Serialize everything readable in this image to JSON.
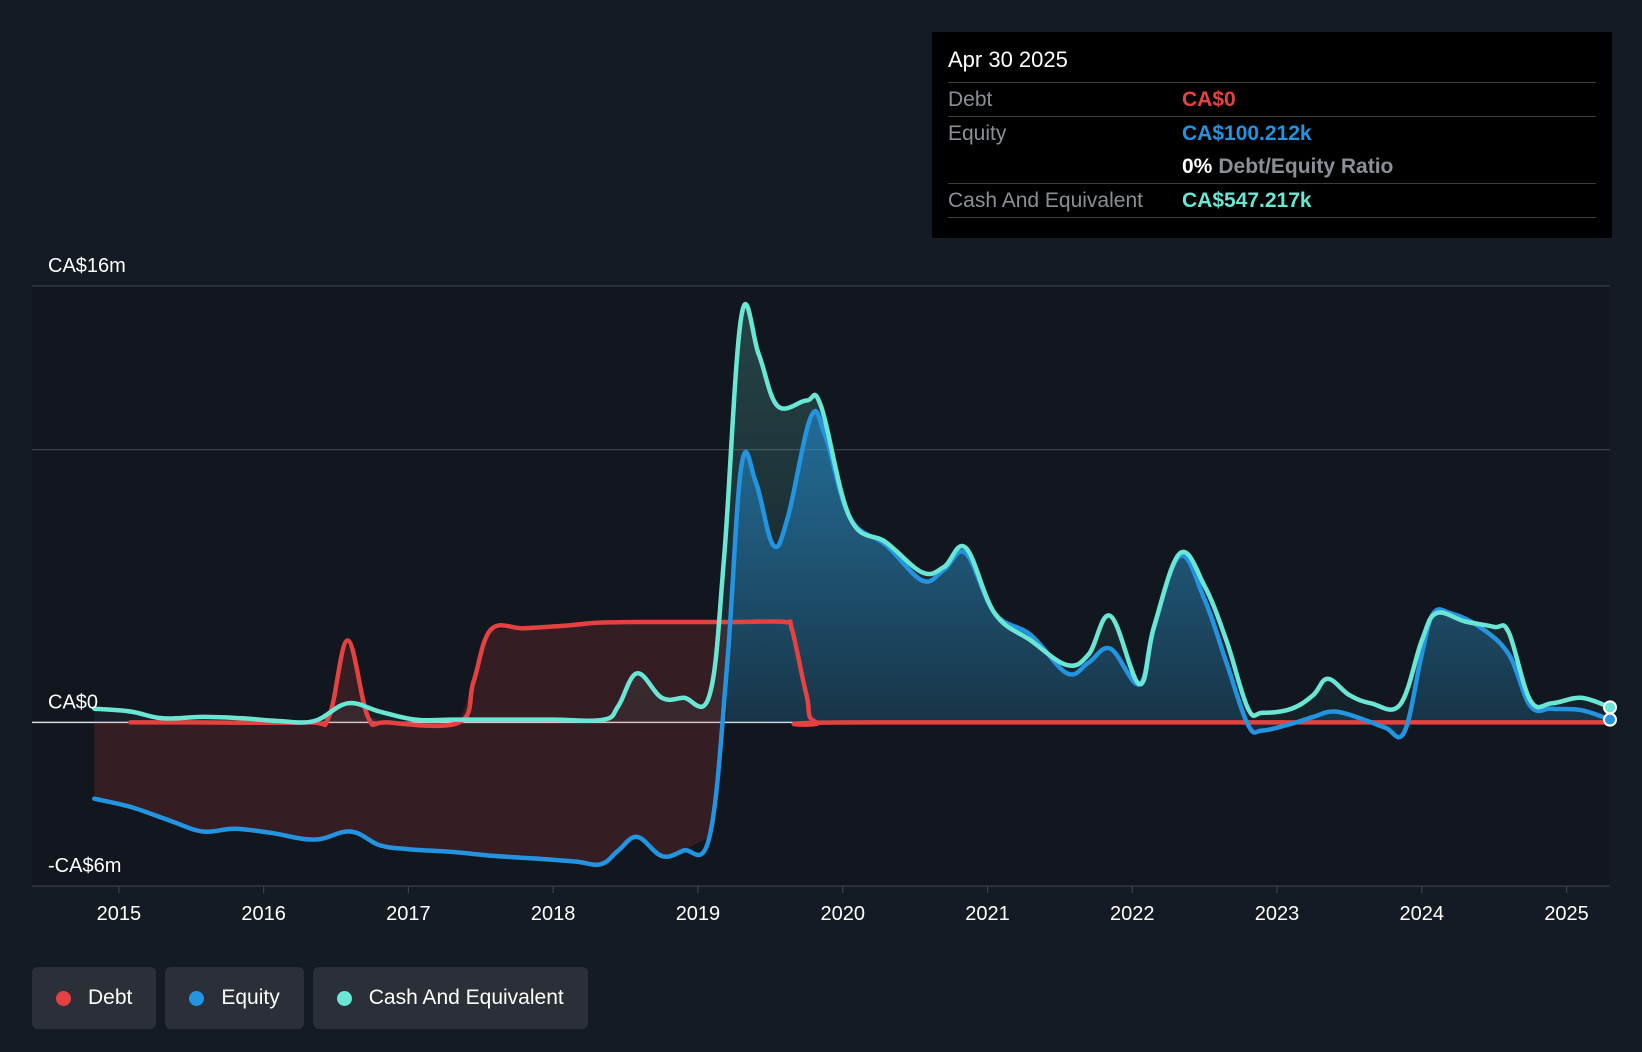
{
  "tooltip": {
    "date": "Apr 30 2025",
    "rows": [
      {
        "label": "Debt",
        "value": "CA$0",
        "color": "#e64141"
      },
      {
        "label": "Equity",
        "value": "CA$100.212k",
        "color": "#2394df"
      },
      {
        "ratio_pct": "0%",
        "ratio_label": "Debt/Equity Ratio"
      },
      {
        "label": "Cash And Equivalent",
        "value": "CA$547.217k",
        "color": "#6ae6d4"
      }
    ]
  },
  "legend": [
    {
      "label": "Debt",
      "color": "#e64141"
    },
    {
      "label": "Equity",
      "color": "#2394df"
    },
    {
      "label": "Cash And Equivalent",
      "color": "#6ae6d4"
    }
  ],
  "chart_data": {
    "type": "line",
    "x_unit": "year",
    "y_unit": "CA$m",
    "xlim": [
      2014.4,
      2025.3
    ],
    "ylim": [
      -6,
      16
    ],
    "y_tick_labels": [
      {
        "value": 16,
        "label": "CA$16m"
      },
      {
        "value": 0,
        "label": "CA$0"
      },
      {
        "value": -6,
        "label": "-CA$6m"
      }
    ],
    "gridlines": [
      16,
      10,
      0,
      -6
    ],
    "x_ticks": [
      {
        "value": 2015,
        "label": "2015"
      },
      {
        "value": 2016,
        "label": "2016"
      },
      {
        "value": 2017,
        "label": "2017"
      },
      {
        "value": 2018,
        "label": "2018"
      },
      {
        "value": 2019,
        "label": "2019"
      },
      {
        "value": 2020,
        "label": "2020"
      },
      {
        "value": 2021,
        "label": "2021"
      },
      {
        "value": 2022,
        "label": "2022"
      },
      {
        "value": 2023,
        "label": "2023"
      },
      {
        "value": 2024,
        "label": "2024"
      },
      {
        "value": 2025,
        "label": "2025"
      }
    ],
    "series": [
      {
        "name": "Debt",
        "color": "#e64141",
        "points": [
          [
            2015.08,
            0
          ],
          [
            2015.5,
            0
          ],
          [
            2016.3,
            0
          ],
          [
            2016.45,
            0.2
          ],
          [
            2016.58,
            3.0
          ],
          [
            2016.72,
            0.2
          ],
          [
            2016.85,
            0
          ],
          [
            2017.35,
            0
          ],
          [
            2017.45,
            1.5
          ],
          [
            2017.57,
            3.4
          ],
          [
            2017.8,
            3.45
          ],
          [
            2018.1,
            3.55
          ],
          [
            2018.3,
            3.65
          ],
          [
            2018.6,
            3.68
          ],
          [
            2019.0,
            3.68
          ],
          [
            2019.3,
            3.68
          ],
          [
            2019.6,
            3.68
          ],
          [
            2019.65,
            3.4
          ],
          [
            2019.75,
            1.0
          ],
          [
            2019.82,
            0
          ],
          [
            2020.2,
            0
          ],
          [
            2025.3,
            0
          ]
        ]
      },
      {
        "name": "Equity",
        "color": "#2394df",
        "points": [
          [
            2014.83,
            -2.8
          ],
          [
            2015.08,
            -3.1
          ],
          [
            2015.35,
            -3.6
          ],
          [
            2015.58,
            -4.0
          ],
          [
            2015.8,
            -3.9
          ],
          [
            2016.05,
            -4.05
          ],
          [
            2016.35,
            -4.3
          ],
          [
            2016.6,
            -4.0
          ],
          [
            2016.8,
            -4.5
          ],
          [
            2017.0,
            -4.65
          ],
          [
            2017.3,
            -4.75
          ],
          [
            2017.6,
            -4.9
          ],
          [
            2017.9,
            -5.0
          ],
          [
            2018.15,
            -5.1
          ],
          [
            2018.33,
            -5.2
          ],
          [
            2018.45,
            -4.7
          ],
          [
            2018.58,
            -4.2
          ],
          [
            2018.75,
            -4.9
          ],
          [
            2018.9,
            -4.7
          ],
          [
            2019.08,
            -4.2
          ],
          [
            2019.2,
            2.0
          ],
          [
            2019.3,
            9.4
          ],
          [
            2019.4,
            8.8
          ],
          [
            2019.52,
            6.5
          ],
          [
            2019.62,
            7.5
          ],
          [
            2019.78,
            11.2
          ],
          [
            2019.88,
            10.5
          ],
          [
            2020.05,
            7.5
          ],
          [
            2020.3,
            6.5
          ],
          [
            2020.55,
            5.2
          ],
          [
            2020.7,
            5.6
          ],
          [
            2020.85,
            6.2
          ],
          [
            2021.05,
            4.0
          ],
          [
            2021.3,
            3.2
          ],
          [
            2021.55,
            1.8
          ],
          [
            2021.7,
            2.2
          ],
          [
            2021.85,
            2.7
          ],
          [
            2022.05,
            1.4
          ],
          [
            2022.15,
            3.5
          ],
          [
            2022.33,
            6.1
          ],
          [
            2022.5,
            4.5
          ],
          [
            2022.65,
            2.2
          ],
          [
            2022.8,
            -0.1
          ],
          [
            2022.9,
            -0.3
          ],
          [
            2023.1,
            -0.05
          ],
          [
            2023.25,
            0.2
          ],
          [
            2023.4,
            0.4
          ],
          [
            2023.6,
            0.1
          ],
          [
            2023.75,
            -0.2
          ],
          [
            2023.88,
            -0.35
          ],
          [
            2024.0,
            2.5
          ],
          [
            2024.08,
            4.0
          ],
          [
            2024.2,
            4.0
          ],
          [
            2024.4,
            3.5
          ],
          [
            2024.6,
            2.5
          ],
          [
            2024.75,
            0.6
          ],
          [
            2024.9,
            0.5
          ],
          [
            2025.1,
            0.45
          ],
          [
            2025.3,
            0.1
          ]
        ]
      },
      {
        "name": "Cash And Equivalent",
        "color": "#6ae6d4",
        "points": [
          [
            2014.83,
            0.5
          ],
          [
            2015.08,
            0.4
          ],
          [
            2015.3,
            0.15
          ],
          [
            2015.58,
            0.2
          ],
          [
            2015.85,
            0.15
          ],
          [
            2016.1,
            0.05
          ],
          [
            2016.35,
            0.05
          ],
          [
            2016.58,
            0.7
          ],
          [
            2016.8,
            0.4
          ],
          [
            2017.05,
            0.1
          ],
          [
            2017.3,
            0.1
          ],
          [
            2017.6,
            0.1
          ],
          [
            2018.0,
            0.1
          ],
          [
            2018.35,
            0.1
          ],
          [
            2018.45,
            0.6
          ],
          [
            2018.58,
            1.8
          ],
          [
            2018.75,
            0.9
          ],
          [
            2018.9,
            0.9
          ],
          [
            2019.08,
            1.0
          ],
          [
            2019.18,
            6.0
          ],
          [
            2019.3,
            14.9
          ],
          [
            2019.42,
            13.5
          ],
          [
            2019.55,
            11.6
          ],
          [
            2019.75,
            11.8
          ],
          [
            2019.85,
            11.6
          ],
          [
            2020.05,
            7.5
          ],
          [
            2020.3,
            6.6
          ],
          [
            2020.55,
            5.5
          ],
          [
            2020.7,
            5.7
          ],
          [
            2020.85,
            6.4
          ],
          [
            2021.05,
            4.0
          ],
          [
            2021.3,
            3.0
          ],
          [
            2021.55,
            2.1
          ],
          [
            2021.7,
            2.5
          ],
          [
            2021.85,
            3.9
          ],
          [
            2022.05,
            1.4
          ],
          [
            2022.15,
            3.5
          ],
          [
            2022.33,
            6.2
          ],
          [
            2022.5,
            5.0
          ],
          [
            2022.65,
            3.0
          ],
          [
            2022.8,
            0.5
          ],
          [
            2022.9,
            0.35
          ],
          [
            2023.1,
            0.5
          ],
          [
            2023.25,
            1.0
          ],
          [
            2023.35,
            1.6
          ],
          [
            2023.5,
            1.0
          ],
          [
            2023.65,
            0.7
          ],
          [
            2023.85,
            0.65
          ],
          [
            2024.0,
            3.0
          ],
          [
            2024.1,
            4.0
          ],
          [
            2024.3,
            3.7
          ],
          [
            2024.5,
            3.5
          ],
          [
            2024.6,
            3.3
          ],
          [
            2024.75,
            0.8
          ],
          [
            2024.9,
            0.7
          ],
          [
            2025.1,
            0.9
          ],
          [
            2025.3,
            0.55
          ]
        ]
      }
    ]
  }
}
